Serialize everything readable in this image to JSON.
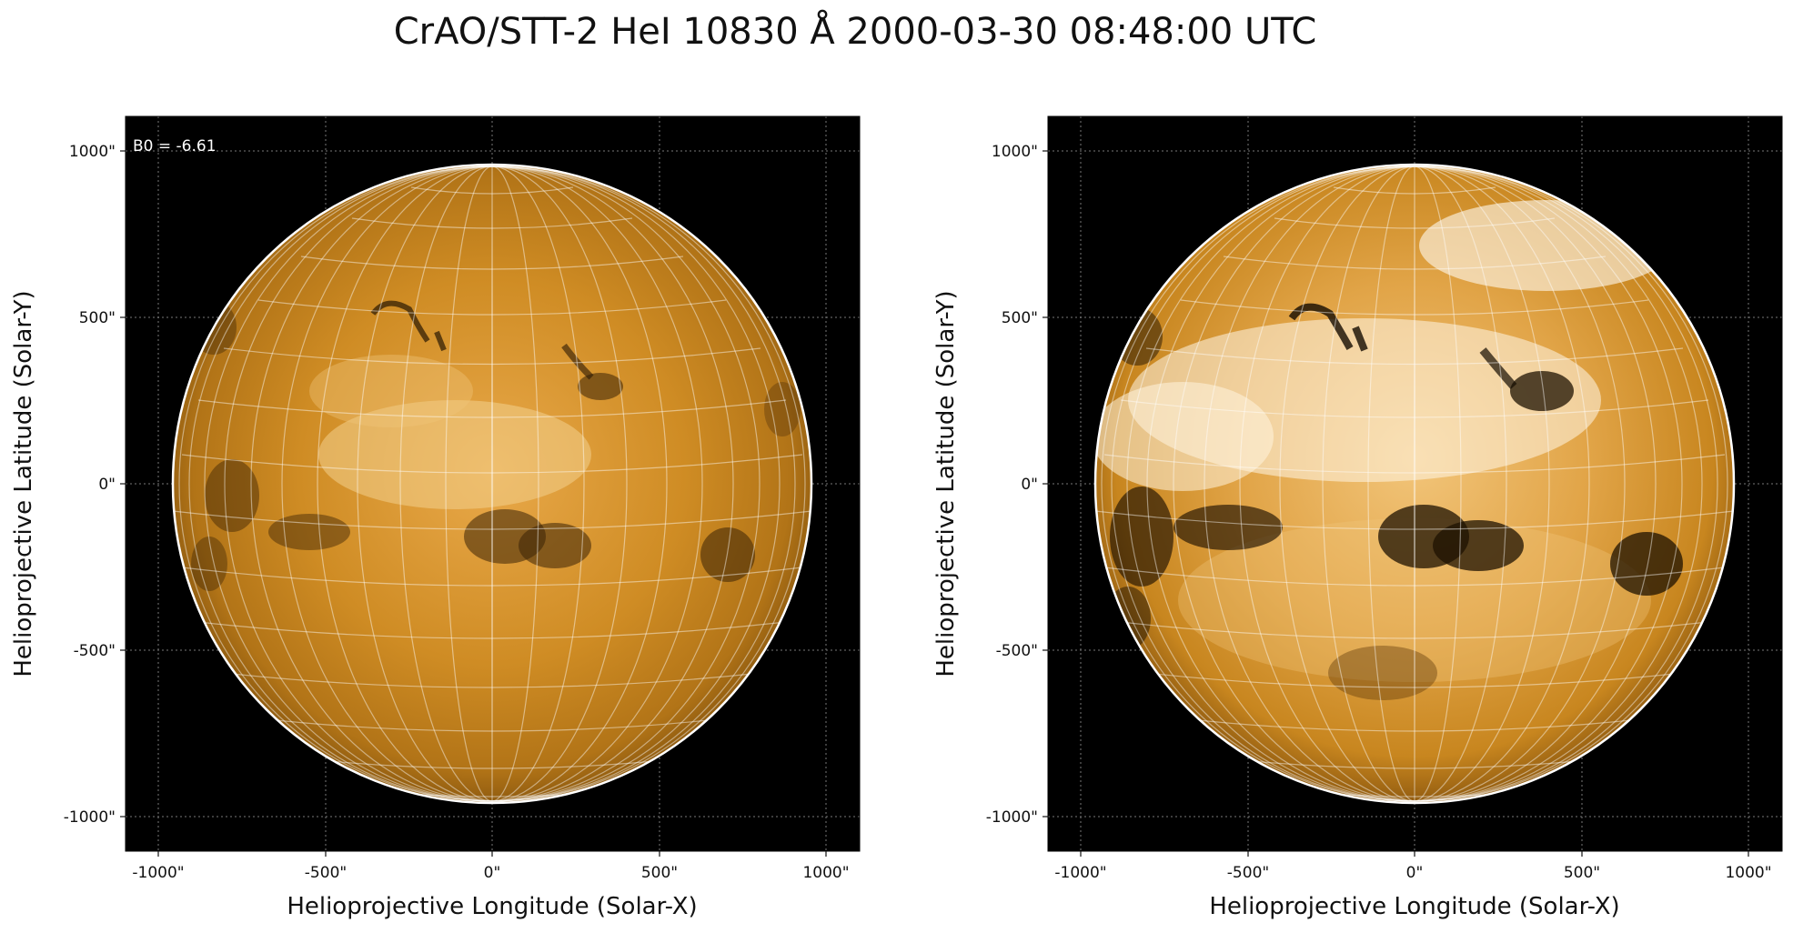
{
  "figure": {
    "title": "CrAO/STT-2 HeI 10830 Å 2000-03-30 08:48:00 UTC"
  },
  "panels": [
    {
      "id": "left",
      "annotation": "B0 = -6.61",
      "xlabel": "Helioprojective Longitude (Solar-X)",
      "ylabel": "Helioprojective Latitude (Solar-Y)",
      "xticks": [
        "-1000\"",
        "-500\"",
        "0\"",
        "500\"",
        "1000\""
      ],
      "yticks": [
        "1000\"",
        "500\"",
        "0\"",
        "-500\"",
        "-1000\""
      ],
      "contrast": "normal"
    },
    {
      "id": "right",
      "annotation": "",
      "xlabel": "Helioprojective Longitude (Solar-X)",
      "ylabel": "Helioprojective Latitude (Solar-Y)",
      "xticks": [
        "-1000\"",
        "-500\"",
        "0\"",
        "500\"",
        "1000\""
      ],
      "yticks": [
        "1000\"",
        "500\"",
        "0\"",
        "-500\"",
        "-1000\""
      ],
      "contrast": "enhanced"
    }
  ],
  "colors": {
    "disk_base": "#c8841a",
    "disk_light": "#f0c070",
    "disk_dark": "#3a2205",
    "background": "#000000",
    "limb": "#ffffff"
  }
}
